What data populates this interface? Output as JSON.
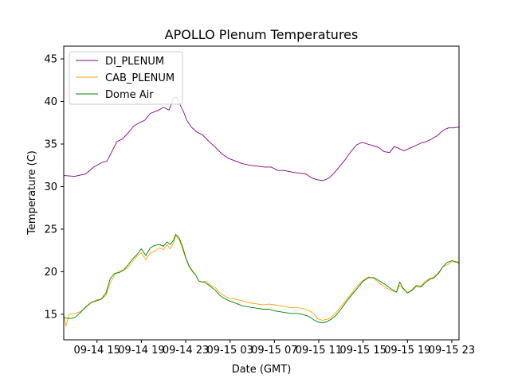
{
  "chart_data": {
    "type": "line",
    "title": "APOLLO Plenum Temperatures",
    "xlabel": "Date (GMT)",
    "ylabel": "Temperature (C)",
    "x_unit": "hours since 09-14 00:00 GMT",
    "xlim": [
      12.0,
      47.65
    ],
    "ylim": [
      12.0,
      46.5
    ],
    "x_ticks": [
      {
        "value": 15,
        "label": "09-14 15"
      },
      {
        "value": 19,
        "label": "09-14 19"
      },
      {
        "value": 23,
        "label": "09-14 23"
      },
      {
        "value": 27,
        "label": "09-15 03"
      },
      {
        "value": 31,
        "label": "09-15 07"
      },
      {
        "value": 35,
        "label": "09-15 11"
      },
      {
        "value": 39,
        "label": "09-15 15"
      },
      {
        "value": 43,
        "label": "09-15 19"
      },
      {
        "value": 47,
        "label": "09-15 23"
      }
    ],
    "y_ticks": [
      {
        "value": 15,
        "label": "15"
      },
      {
        "value": 20,
        "label": "20"
      },
      {
        "value": 25,
        "label": "25"
      },
      {
        "value": 30,
        "label": "30"
      },
      {
        "value": 35,
        "label": "35"
      },
      {
        "value": 40,
        "label": "40"
      },
      {
        "value": 45,
        "label": "45"
      }
    ],
    "grid": false,
    "legend_position": "top-left",
    "series": [
      {
        "name": "DI_PLENUM",
        "color": "#800080",
        "x": [
          12.0,
          13.0,
          14.0,
          14.7,
          15.4,
          15.9,
          16.3,
          16.8,
          17.3,
          17.8,
          18.3,
          18.8,
          19.3,
          19.8,
          20.4,
          21.0,
          21.5,
          21.9,
          22.2,
          22.5,
          22.8,
          23.1,
          23.5,
          24.0,
          24.5,
          25.1,
          25.7,
          26.3,
          26.9,
          27.5,
          28.1,
          28.8,
          29.5,
          30.1,
          30.7,
          31.3,
          31.9,
          32.6,
          33.2,
          33.8,
          34.4,
          34.9,
          35.4,
          35.9,
          36.4,
          36.9,
          37.4,
          37.9,
          38.4,
          38.9,
          39.4,
          39.9,
          40.4,
          40.9,
          41.4,
          41.8,
          42.2,
          42.7,
          43.2,
          43.7,
          44.2,
          44.7,
          45.2,
          45.7,
          46.2,
          46.7,
          47.2,
          47.65
        ],
        "y": [
          31.3,
          31.2,
          31.5,
          32.3,
          32.8,
          33.0,
          34.0,
          35.3,
          35.6,
          36.3,
          37.1,
          37.5,
          37.8,
          38.6,
          38.9,
          39.3,
          39.0,
          40.4,
          40.5,
          39.6,
          38.8,
          37.8,
          37.0,
          36.4,
          36.1,
          35.3,
          34.6,
          33.8,
          33.3,
          33.0,
          32.7,
          32.5,
          32.4,
          32.3,
          32.3,
          31.9,
          31.9,
          31.7,
          31.6,
          31.5,
          31.0,
          30.8,
          30.7,
          31.0,
          31.6,
          32.4,
          33.2,
          34.1,
          34.9,
          35.2,
          35.0,
          34.8,
          34.6,
          34.1,
          34.0,
          34.7,
          34.5,
          34.2,
          34.5,
          34.8,
          35.1,
          35.3,
          35.6,
          36.0,
          36.6,
          36.9,
          36.9,
          37.0
        ]
      },
      {
        "name": "CAB_PLENUM",
        "color": "#ffa500",
        "x": [
          12.0,
          12.2,
          12.5,
          13.0,
          13.5,
          14.0,
          14.5,
          15.0,
          15.4,
          15.8,
          16.2,
          16.6,
          17.0,
          17.4,
          17.8,
          18.2,
          18.6,
          19.0,
          19.4,
          19.8,
          20.2,
          20.6,
          21.0,
          21.3,
          21.6,
          21.9,
          22.1,
          22.4,
          22.7,
          23.0,
          23.3,
          23.6,
          23.9,
          24.2,
          24.5,
          24.8,
          25.1,
          25.4,
          25.7,
          26.0,
          26.3,
          26.6,
          26.9,
          27.3,
          27.7,
          28.1,
          28.5,
          29.0,
          29.5,
          30.0,
          30.5,
          31.0,
          31.5,
          32.0,
          32.5,
          33.0,
          33.5,
          34.0,
          34.3,
          34.6,
          34.9,
          35.3,
          35.7,
          36.1,
          36.5,
          37.0,
          37.5,
          38.0,
          38.5,
          39.0,
          39.5,
          40.0,
          40.5,
          41.0,
          41.5,
          42.0,
          42.3,
          42.6,
          43.0,
          43.4,
          43.8,
          44.2,
          44.6,
          45.0,
          45.4,
          45.8,
          46.2,
          46.6,
          47.0,
          47.65
        ],
        "y": [
          15.0,
          13.6,
          15.0,
          15.1,
          15.3,
          15.8,
          16.4,
          16.7,
          16.8,
          17.2,
          18.7,
          19.6,
          20.1,
          20.2,
          20.5,
          21.2,
          21.8,
          22.2,
          21.4,
          22.2,
          22.4,
          22.8,
          22.6,
          23.2,
          22.7,
          23.4,
          24.2,
          23.8,
          22.7,
          21.6,
          20.6,
          20.0,
          19.6,
          18.9,
          18.8,
          18.9,
          18.6,
          18.3,
          18.1,
          17.6,
          17.3,
          17.1,
          16.9,
          16.8,
          16.7,
          16.6,
          16.4,
          16.3,
          16.2,
          16.1,
          16.2,
          16.1,
          16.0,
          15.9,
          15.8,
          15.8,
          15.7,
          15.5,
          15.3,
          15.0,
          14.5,
          14.3,
          14.4,
          14.6,
          15.1,
          15.9,
          16.7,
          17.5,
          18.4,
          19.0,
          19.4,
          19.2,
          18.6,
          18.2,
          17.8,
          17.6,
          18.4,
          18.0,
          17.5,
          17.9,
          18.4,
          18.3,
          18.9,
          19.2,
          19.4,
          19.9,
          20.6,
          20.8,
          21.2,
          21.0
        ]
      },
      {
        "name": "Dome Air",
        "color": "#008000",
        "x": [
          12.0,
          12.5,
          13.0,
          13.5,
          14.0,
          14.5,
          15.0,
          15.4,
          15.8,
          16.2,
          16.6,
          17.0,
          17.4,
          17.8,
          18.2,
          18.6,
          19.0,
          19.4,
          19.8,
          20.2,
          20.6,
          21.0,
          21.3,
          21.6,
          21.9,
          22.1,
          22.4,
          22.7,
          23.0,
          23.3,
          23.6,
          23.9,
          24.2,
          24.5,
          24.8,
          25.1,
          25.4,
          25.7,
          26.0,
          26.3,
          26.6,
          26.9,
          27.3,
          27.7,
          28.1,
          28.5,
          29.0,
          29.5,
          30.0,
          30.5,
          31.0,
          31.5,
          32.0,
          32.5,
          33.0,
          33.5,
          34.0,
          34.3,
          34.6,
          34.9,
          35.3,
          35.7,
          36.1,
          36.5,
          37.0,
          37.5,
          38.0,
          38.5,
          39.0,
          39.5,
          40.0,
          40.5,
          41.0,
          41.5,
          42.0,
          42.3,
          42.6,
          43.0,
          43.4,
          43.8,
          44.2,
          44.6,
          45.0,
          45.4,
          45.8,
          46.2,
          46.6,
          47.0,
          47.65
        ],
        "y": [
          14.6,
          14.5,
          14.6,
          15.2,
          15.9,
          16.4,
          16.6,
          16.8,
          17.5,
          19.2,
          19.8,
          19.9,
          20.2,
          20.8,
          21.5,
          22.0,
          22.7,
          21.9,
          22.8,
          23.1,
          23.2,
          23.0,
          23.5,
          23.2,
          23.7,
          24.4,
          24.0,
          23.0,
          21.7,
          20.7,
          20.1,
          19.6,
          18.9,
          18.8,
          18.7,
          18.4,
          18.1,
          17.8,
          17.3,
          17.0,
          16.8,
          16.6,
          16.4,
          16.2,
          16.0,
          15.9,
          15.8,
          15.7,
          15.6,
          15.6,
          15.4,
          15.3,
          15.2,
          15.1,
          15.1,
          15.0,
          14.8,
          14.6,
          14.3,
          14.1,
          14.0,
          14.1,
          14.4,
          14.8,
          15.6,
          16.5,
          17.3,
          18.1,
          18.9,
          19.3,
          19.3,
          18.9,
          18.5,
          18.0,
          17.6,
          18.8,
          18.1,
          17.5,
          17.8,
          18.3,
          18.2,
          18.7,
          19.1,
          19.3,
          19.8,
          20.6,
          21.1,
          21.3,
          21.1
        ]
      }
    ]
  }
}
